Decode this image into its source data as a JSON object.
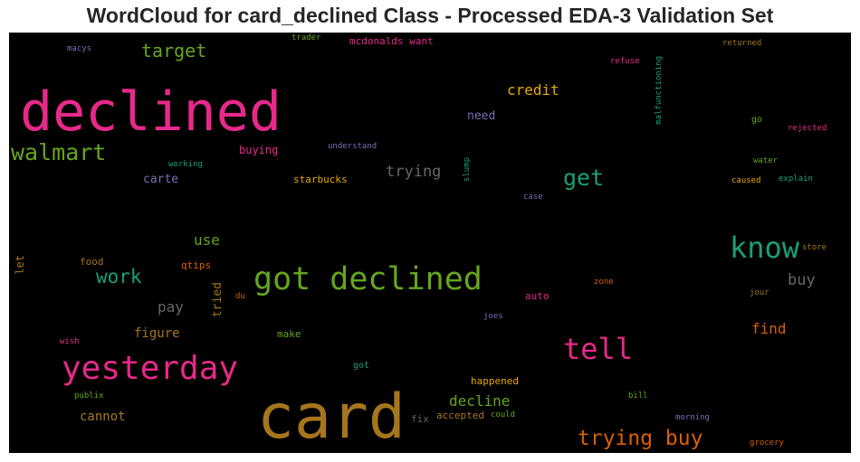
{
  "title": "WordCloud for card_declined Class - Processed EDA-3 Validation Set",
  "words": [
    {
      "text": "declined",
      "color": "#e7298a"
    },
    {
      "text": "card",
      "color": "#a6761d"
    },
    {
      "text": "got declined",
      "color": "#66a61e"
    },
    {
      "text": "yesterday",
      "color": "#e7298a"
    },
    {
      "text": "know",
      "color": "#1b9e77"
    },
    {
      "text": "tell",
      "color": "#e7298a"
    },
    {
      "text": "walmart",
      "color": "#66a61e"
    },
    {
      "text": "trying buy",
      "color": "#d95f02"
    },
    {
      "text": "get",
      "color": "#1b9e77"
    },
    {
      "text": "target",
      "color": "#66a61e"
    },
    {
      "text": "work",
      "color": "#1b9e77"
    },
    {
      "text": "credit",
      "color": "#e6ab02"
    },
    {
      "text": "trying",
      "color": "#666666"
    },
    {
      "text": "buy",
      "color": "#666666"
    },
    {
      "text": "decline",
      "color": "#66a61e"
    },
    {
      "text": "use",
      "color": "#66a61e"
    },
    {
      "text": "pay",
      "color": "#666666"
    },
    {
      "text": "find",
      "color": "#d95f02"
    },
    {
      "text": "figure",
      "color": "#a6761d"
    },
    {
      "text": "cannot",
      "color": "#a6761d"
    },
    {
      "text": "need",
      "color": "#7570b3"
    },
    {
      "text": "carte",
      "color": "#7570b3"
    },
    {
      "text": "tried",
      "color": "#a6761d"
    },
    {
      "text": "buying",
      "color": "#e7298a"
    },
    {
      "text": "starbucks",
      "color": "#e6ab02"
    },
    {
      "text": "mcdonalds want",
      "color": "#e7298a"
    },
    {
      "text": "food",
      "color": "#a6761d"
    },
    {
      "text": "qtips",
      "color": "#d95f02"
    },
    {
      "text": "auto",
      "color": "#e7298a"
    },
    {
      "text": "make",
      "color": "#66a61e"
    },
    {
      "text": "happened",
      "color": "#e6ab02"
    },
    {
      "text": "accepted",
      "color": "#a6761d"
    },
    {
      "text": "fix",
      "color": "#666666"
    },
    {
      "text": "let",
      "color": "#a6761d"
    },
    {
      "text": "got",
      "color": "#1b9e77"
    },
    {
      "text": "go",
      "color": "#66a61e"
    },
    {
      "text": "understand",
      "color": "#7570b3"
    },
    {
      "text": "working",
      "color": "#1b9e77"
    },
    {
      "text": "macys",
      "color": "#7570b3"
    },
    {
      "text": "trader",
      "color": "#66a61e"
    },
    {
      "text": "refuse",
      "color": "#e7298a"
    },
    {
      "text": "returned",
      "color": "#a6761d"
    },
    {
      "text": "malfunctioning",
      "color": "#1b9e77"
    },
    {
      "text": "rejected",
      "color": "#e7298a"
    },
    {
      "text": "water",
      "color": "#66a61e"
    },
    {
      "text": "caused",
      "color": "#e6ab02"
    },
    {
      "text": "explain",
      "color": "#1b9e77"
    },
    {
      "text": "slump",
      "color": "#1b9e77"
    },
    {
      "text": "case",
      "color": "#7570b3"
    },
    {
      "text": "store",
      "color": "#a6761d"
    },
    {
      "text": "zone",
      "color": "#d95f02"
    },
    {
      "text": "jour",
      "color": "#a6761d"
    },
    {
      "text": "du",
      "color": "#d95f02"
    },
    {
      "text": "joes",
      "color": "#7570b3"
    },
    {
      "text": "wish",
      "color": "#e7298a"
    },
    {
      "text": "publix",
      "color": "#66a61e"
    },
    {
      "text": "could",
      "color": "#66a61e"
    },
    {
      "text": "bill",
      "color": "#66a61e"
    },
    {
      "text": "morning",
      "color": "#7570b3"
    },
    {
      "text": "grocery",
      "color": "#d95f02"
    }
  ]
}
